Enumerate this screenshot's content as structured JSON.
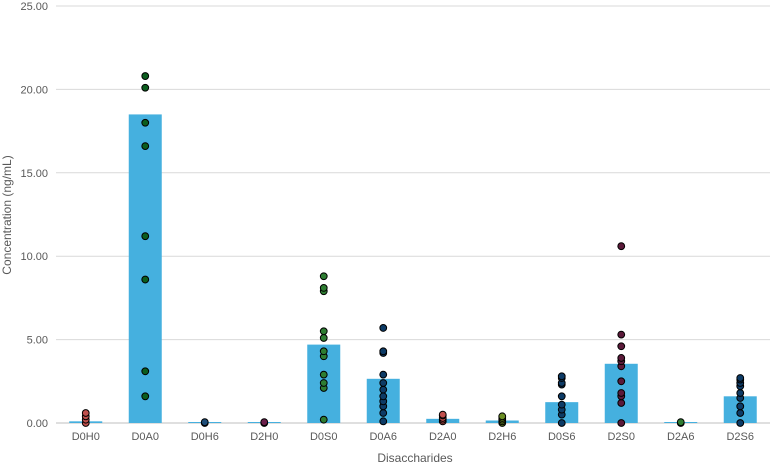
{
  "chart_data": {
    "type": "bar",
    "xlabel": "Disaccharides",
    "ylabel": "Concentration (ng/mL)",
    "ylim": [
      0,
      25
    ],
    "y_ticks": [
      "0.00",
      "5.00",
      "10.00",
      "15.00",
      "20.00",
      "25.00"
    ],
    "grid": true,
    "categories": [
      "D0H0",
      "D0A0",
      "D0H6",
      "D2H0",
      "D0S0",
      "D0A6",
      "D2A0",
      "D2H6",
      "D0S6",
      "D2S0",
      "D2A6",
      "D2S6"
    ],
    "values": [
      0.1,
      18.5,
      0.05,
      0.05,
      4.7,
      2.65,
      0.25,
      0.15,
      1.25,
      3.55,
      0.02,
      1.6
    ],
    "points": [
      [
        0.0,
        0.2,
        0.4,
        0.6
      ],
      [
        1.6,
        3.1,
        8.6,
        11.2,
        16.6,
        18.0,
        20.1,
        20.8
      ],
      [
        0.0,
        0.05
      ],
      [
        0.0,
        0.05
      ],
      [
        0.2,
        2.1,
        2.4,
        2.9,
        4.0,
        4.3,
        5.1,
        5.5,
        7.9,
        8.1,
        8.8
      ],
      [
        0.1,
        0.6,
        1.0,
        1.3,
        1.6,
        2.0,
        2.4,
        2.9,
        4.2,
        4.3,
        5.7
      ],
      [
        0.1,
        0.2,
        0.3,
        0.45,
        0.5
      ],
      [
        0.0,
        0.1,
        0.2,
        0.3,
        0.4
      ],
      [
        0.0,
        0.5,
        0.8,
        1.1,
        1.6,
        2.3,
        2.4,
        2.7,
        2.8
      ],
      [
        0.0,
        1.2,
        1.6,
        1.8,
        2.5,
        3.4,
        3.7,
        3.9,
        4.6,
        5.3,
        10.6
      ],
      [
        0.0,
        0.05
      ],
      [
        0.0,
        0.6,
        1.0,
        1.5,
        1.8,
        2.2,
        2.4,
        2.6,
        2.7
      ]
    ],
    "bar_color": "#45B0DF",
    "point_colors": [
      "#C0504D",
      "#0B5D1E",
      "#1F4E79",
      "#6B1F4A",
      "#2E7D32",
      "#0D3B66",
      "#C0504D",
      "#6B8E23",
      "#0D3B66",
      "#5B1A3A",
      "#2E7D32",
      "#0D3B66"
    ]
  }
}
